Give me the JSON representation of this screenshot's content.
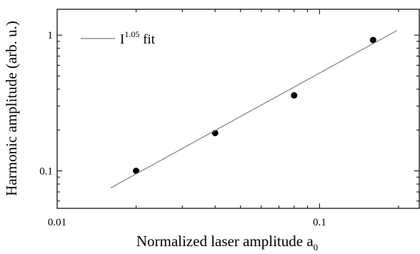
{
  "chart_data": {
    "type": "scatter",
    "xlabel": "Normalized laser amplitude a",
    "xlabel_subscript": "0",
    "ylabel": "Harmonic amplitude (arb. u.)",
    "x_scale": "log",
    "y_scale": "log",
    "xlim": [
      0.01,
      0.24
    ],
    "ylim": [
      0.053,
      1.55
    ],
    "x_ticks": [
      {
        "value": 0.01,
        "label": "0.01"
      },
      {
        "value": 0.1,
        "label": "0.1"
      }
    ],
    "y_ticks": [
      {
        "value": 0.1,
        "label": "0.1"
      },
      {
        "value": 1,
        "label": "1"
      }
    ],
    "grid": false,
    "legend_position": "top-left",
    "series": [
      {
        "kind": "points",
        "marker": "circle",
        "color": "#000000",
        "x": [
          0.02,
          0.04,
          0.08,
          0.16
        ],
        "y": [
          0.1,
          0.19,
          0.36,
          0.92
        ]
      },
      {
        "kind": "line",
        "name": "fit",
        "legend_base": "I",
        "legend_exponent": "1.05",
        "legend_suffix": " fit",
        "color": "#808080",
        "x": [
          0.016,
          0.197
        ],
        "y": [
          0.075,
          1.08
        ]
      }
    ]
  }
}
